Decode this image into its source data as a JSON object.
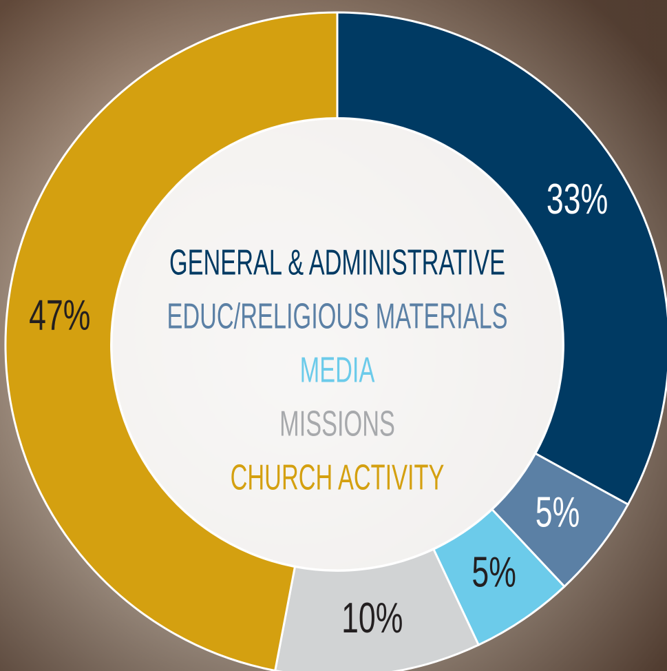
{
  "chart_data": {
    "type": "donut",
    "categories": [
      "GENERAL & ADMINISTRATIVE",
      "EDUC/RELIGIOUS MATERIALS",
      "MEDIA",
      "MISSIONS",
      "CHURCH ACTIVITY"
    ],
    "values": [
      33,
      5,
      5,
      10,
      47
    ],
    "value_labels": [
      "33%",
      "5%",
      "5%",
      "10%",
      "47%"
    ],
    "colors": [
      "#003a63",
      "#5b80a5",
      "#6ccbea",
      "#d1d3d4",
      "#d4a010"
    ],
    "legend_colors": [
      "#003a63",
      "#5b80a5",
      "#6ccbea",
      "#a7a9ac",
      "#d4a010"
    ],
    "label_colors": [
      "#ffffff",
      "#ffffff",
      "#231f20",
      "#231f20",
      "#231f20"
    ]
  }
}
